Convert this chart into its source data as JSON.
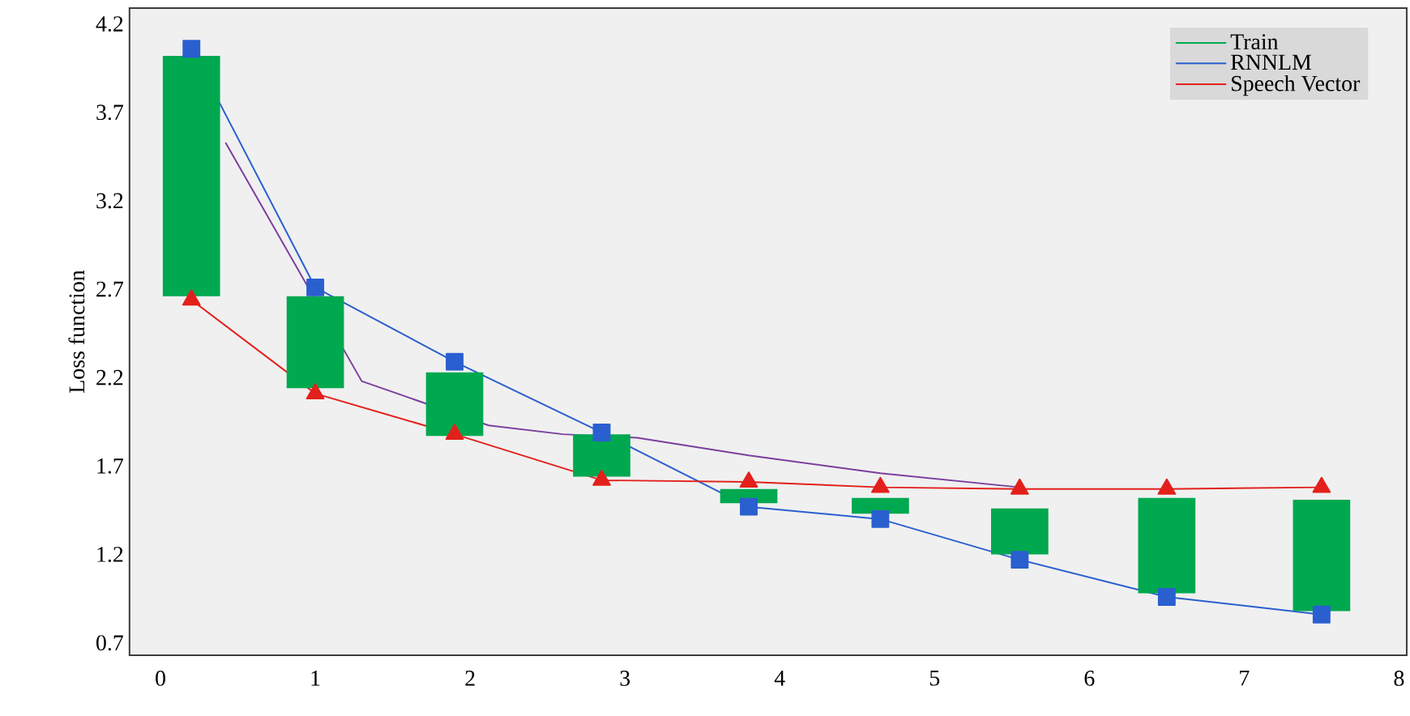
{
  "chart_data": {
    "type": "line",
    "ylabel": "Loss function",
    "xlim": [
      -0.2,
      8.05
    ],
    "xticks": [
      0,
      1,
      2,
      3,
      4,
      5,
      6,
      7,
      8
    ],
    "ylim": [
      0.63,
      4.29
    ],
    "yticks": [
      0.7,
      1.2,
      1.7,
      2.2,
      2.7,
      3.2,
      3.7,
      4.2
    ],
    "x": [
      0.2,
      1.0,
      1.9,
      2.85,
      3.8,
      4.65,
      5.55,
      6.5,
      7.5
    ],
    "legend": "top right",
    "series": [
      {
        "name": "Train",
        "type": "bar",
        "color": "#00a84f",
        "base": [
          2.66,
          2.14,
          1.87,
          1.64,
          1.49,
          1.43,
          1.2,
          0.98,
          0.88
        ],
        "values": [
          1.36,
          0.52,
          0.36,
          0.24,
          0.08,
          0.09,
          0.26,
          0.54,
          0.63
        ]
      },
      {
        "name": "RNNLM",
        "color": "#2a5fcf",
        "marker": "square",
        "values": [
          4.06,
          2.71,
          2.29,
          1.89,
          1.47,
          1.4,
          1.17,
          0.96,
          0.86
        ]
      },
      {
        "name": "Speech Vector",
        "color": "#e3201b",
        "marker": "triangle",
        "values": [
          2.64,
          2.11,
          1.88,
          1.62,
          1.61,
          1.58,
          1.57,
          1.57,
          1.58
        ]
      },
      {
        "color": "#7b3f9e",
        "marker": "none",
        "x": [
          0.42,
          1.3,
          2.12,
          2.6,
          3.08,
          3.8,
          4.65,
          5.55
        ],
        "values": [
          3.53,
          2.18,
          1.93,
          1.88,
          1.86,
          1.76,
          1.66,
          1.58
        ]
      }
    ]
  }
}
